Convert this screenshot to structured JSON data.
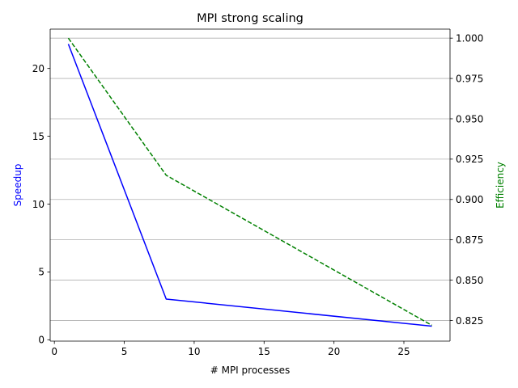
{
  "chart_data": {
    "type": "line",
    "title": "MPI strong scaling",
    "xlabel": "# MPI processes",
    "ylabel_left": "Speedup",
    "ylabel_right": "Efficiency",
    "xlim": [
      -0.3,
      28.3
    ],
    "ylim_left": [
      -0.1,
      22.9
    ],
    "ylim_right": [
      0.8122,
      1.0056
    ],
    "xticks": [
      0,
      5,
      10,
      15,
      20,
      25
    ],
    "yticks_left": [
      0,
      5,
      10,
      15,
      20
    ],
    "yticks_right": [
      0.825,
      0.85,
      0.875,
      0.9,
      0.925,
      0.95,
      0.975,
      1.0
    ],
    "grid": "horizontal lines at right-axis ticks",
    "series": [
      {
        "axis": "left",
        "x": [
          1,
          8,
          27
        ],
        "values": [
          21.8,
          3.0,
          1.0
        ],
        "color": "#0000ff",
        "style": "solid"
      },
      {
        "axis": "right",
        "x": [
          1,
          8,
          27
        ],
        "values": [
          1.0,
          0.915,
          0.822
        ],
        "color": "#008000",
        "style": "dashed"
      }
    ]
  }
}
